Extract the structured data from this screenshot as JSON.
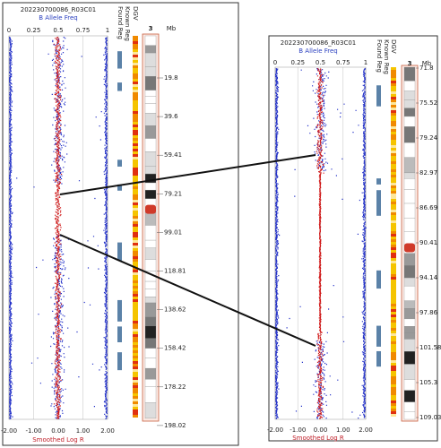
{
  "left": {
    "title": "202230700086_R03C01",
    "subtitle": "B Allele Freq",
    "top_ticks": [
      "0",
      "0.25",
      "0.5",
      "0.75",
      "1"
    ],
    "bottom_ticks": [
      "-2.00",
      "-1.00",
      "0.00",
      "1.00",
      "2.00"
    ],
    "bottom_label": "Smoothed Log R",
    "columns": [
      "Found Reg",
      "Known Reg",
      "DGV"
    ],
    "chromosome": "3",
    "unit": "Mb",
    "mb_ticks": [
      "19.8",
      "39.6",
      "59.41",
      "79.21",
      "99.01",
      "118.81",
      "138.62",
      "158.42",
      "178.22",
      "198.02"
    ]
  },
  "right": {
    "title": "202230700086_R03C01",
    "subtitle": "B Allele Freq",
    "top_ticks": [
      "0",
      "0.25",
      "0.5",
      "0.75",
      "1"
    ],
    "bottom_ticks": [
      "-2.00",
      "-1.00",
      "0.00",
      "1.00",
      "2.00"
    ],
    "bottom_label": "Smoothed Log R",
    "columns": [
      "Found Reg",
      "Known Reg",
      "DGV"
    ],
    "chromosome": "3",
    "unit": "Mb",
    "mb_ticks": [
      "71.8",
      "75.52",
      "79.24",
      "82.97",
      "86.69",
      "90.41",
      "94.14",
      "97.86",
      "101.58",
      "105.3",
      "109.03"
    ]
  }
}
